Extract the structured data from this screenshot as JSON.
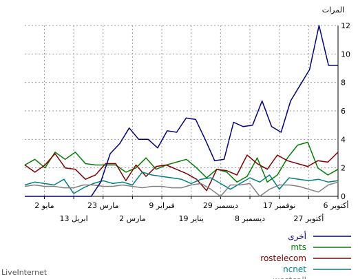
{
  "chart_data": {
    "type": "line",
    "ylabel": "المرات",
    "ylim": [
      0,
      12
    ],
    "y_ticks": [
      0,
      2,
      4,
      6,
      8,
      10,
      12
    ],
    "grid": true,
    "legend_position": "bottom-right",
    "x_ticks": [
      {
        "label": "6 أكتوبر",
        "x": 32,
        "row": 1
      },
      {
        "label": "27 أكتوبر",
        "x": 29,
        "row": 2
      },
      {
        "label": "17 نوفمبر",
        "x": 26,
        "row": 1
      },
      {
        "label": "8 ديسمبر",
        "x": 23,
        "row": 2
      },
      {
        "label": "29 ديسمبر",
        "x": 20,
        "row": 1
      },
      {
        "label": "19 يناير",
        "x": 17,
        "row": 2
      },
      {
        "label": "9 فبراير",
        "x": 14,
        "row": 1
      },
      {
        "label": "2 مارس",
        "x": 11,
        "row": 2
      },
      {
        "label": "23 مارس",
        "x": 8,
        "row": 1
      },
      {
        "label": "13 ابريل",
        "x": 5,
        "row": 2
      },
      {
        "label": "2 مايو",
        "x": 2,
        "row": 1
      }
    ],
    "x_range": [
      0,
      32
    ],
    "series": [
      {
        "name": "أخرى",
        "color": "#000080",
        "values": [
          0,
          0,
          0,
          0,
          0,
          0,
          0,
          0,
          1,
          3,
          3.7,
          4.8,
          4.0,
          4.0,
          3.4,
          4.6,
          4.5,
          5.5,
          5.4,
          4.0,
          2.5,
          2.6,
          5.2,
          4.9,
          5.0,
          6.7,
          4.9,
          4.5,
          6.7,
          7.8,
          8.9,
          12.0,
          9.2,
          9.2
        ]
      },
      {
        "name": "mts",
        "color": "#008000",
        "values": [
          2.2,
          2.6,
          2.0,
          3.1,
          2.6,
          3.1,
          2.3,
          2.2,
          2.2,
          2.2,
          1.7,
          2.0,
          2.7,
          1.9,
          2.2,
          2.4,
          2.6,
          2.0,
          1.3,
          1.9,
          1.7,
          1.0,
          1.4,
          2.7,
          1.0,
          1.5,
          2.7,
          3.6,
          3.8,
          2.0,
          1.5,
          1.9
        ]
      },
      {
        "name": "rostelecom",
        "color": "#800000",
        "values": [
          2.2,
          1.7,
          2.2,
          3.0,
          2.0,
          1.9,
          1.2,
          1.5,
          2.3,
          2.3,
          1.1,
          2.2,
          1.4,
          2.1,
          2.2,
          1.9,
          1.6,
          1.2,
          0.4,
          1.9,
          1.8,
          1.5,
          2.9,
          2.3,
          1.9,
          2.9,
          2.5,
          2.3,
          2.1,
          2.5,
          2.4,
          3.1
        ]
      },
      {
        "name": "ncnet",
        "color": "#008080",
        "values": [
          0.8,
          1.0,
          0.9,
          0.8,
          1.2,
          0.2,
          0.6,
          0.9,
          1.1,
          0.9,
          1.0,
          0.8,
          1.7,
          1.5,
          1.4,
          1.3,
          1.2,
          0.9,
          1.2,
          1.3,
          0.9,
          0.5,
          0.9,
          1.3,
          1.0,
          1.5,
          0.5,
          1.3,
          1.2,
          1.1,
          1.2,
          1.0,
          1.1
        ]
      },
      {
        "name": "westcall",
        "color": "#808080",
        "values": [
          0.7,
          0.8,
          0.7,
          0.7,
          0.6,
          0.6,
          0.8,
          0.8,
          0.7,
          0.7,
          0.8,
          0.7,
          0.6,
          0.7,
          0.7,
          0.6,
          0.6,
          0.8,
          0.9,
          0.5,
          0.0,
          0.8,
          0.8,
          0.9,
          0.0,
          0.5,
          0.8,
          0.8,
          0.7,
          0.5,
          0.3,
          0.8,
          1.0
        ]
      }
    ]
  },
  "footer": {
    "credit": "LiveInternet"
  }
}
